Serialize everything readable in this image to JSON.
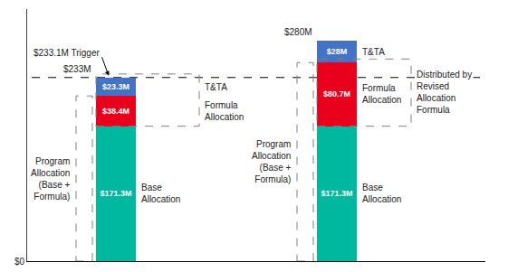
{
  "chart_data": {
    "type": "bar",
    "stacked": true,
    "categories": [
      null,
      null
    ],
    "series": [
      {
        "color": "#00B8A0",
        "values": [
          171.3,
          171.3
        ],
        "value_labels": [
          "$171.3M",
          "$171.3M"
        ]
      },
      {
        "color": "#E8001C",
        "values": [
          38.4,
          80.7
        ],
        "value_labels": [
          "$38.4M",
          "$80.7M"
        ]
      },
      {
        "color": "#4472C4",
        "values": [
          23.3,
          28.0
        ],
        "value_labels": [
          "$23.3M",
          "$28M"
        ]
      }
    ],
    "data_labels": true,
    "ylim": [
      0,
      320
    ],
    "yticks": [
      {
        "value": 0,
        "label": "$0"
      }
    ],
    "tick_labels": "y",
    "grid": false,
    "totals": {
      "values": [
        233.0,
        280.0
      ],
      "labels": [
        "$233M",
        "$280M"
      ]
    },
    "hlines": [
      {
        "value": 233.1,
        "label": "$233.1M Trigger",
        "line_style": "dashed",
        "bar": 0
      }
    ],
    "annotations": [
      {
        "text": "Base\nAllocation",
        "bar": 0,
        "segment": 0
      },
      {
        "text": "Formula\nAllocation",
        "bar": 0,
        "segment": 1
      },
      {
        "text": "T&TA",
        "bar": 0,
        "segment": 2
      },
      {
        "text": "Base\nAllocation",
        "bar": 1,
        "segment": 0
      },
      {
        "text": "Formula\nAllocation",
        "bar": 1,
        "segment": 1
      },
      {
        "text": "T&TA",
        "bar": 1,
        "segment": 2
      }
    ],
    "boxes": [
      {
        "bar": 0,
        "segments": [
          1,
          2
        ],
        "side": "right"
      },
      {
        "bar": 0,
        "segments": [
          0,
          1
        ],
        "side": "left",
        "text": "Program\nAllocation\n(Base +\nFormula)"
      },
      {
        "bar": 1,
        "segments": [
          1
        ],
        "side": "right",
        "text": "Distributed by\nRevised\nAllocation\nFormula"
      },
      {
        "bar": 1,
        "segments": [
          0,
          1
        ],
        "side": "left",
        "text": "Program\nAllocation\n(Base +\nFormula)"
      }
    ]
  }
}
